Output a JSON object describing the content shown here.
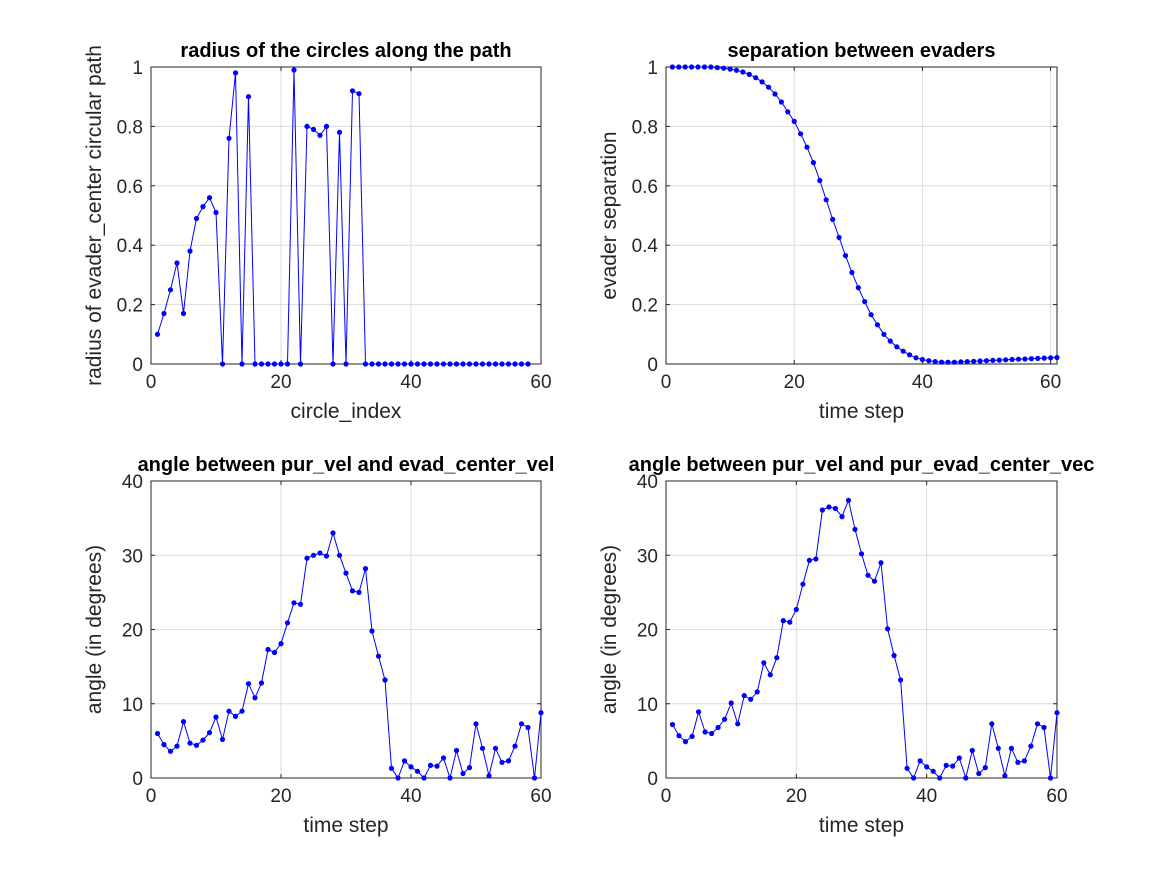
{
  "style": {
    "line_color": "#0000ff",
    "grid_color": "#dcdcdc",
    "axis_color": "#262626"
  },
  "chart_data": [
    {
      "type": "line",
      "title": "radius of the circles along the path",
      "xlabel": "circle_index",
      "ylabel": "radius of evader_center circular path",
      "xlim": [
        0,
        60
      ],
      "ylim": [
        0,
        1
      ],
      "xticks": [
        0,
        20,
        40,
        60
      ],
      "yticks": [
        0,
        0.2,
        0.4,
        0.6,
        0.8,
        1
      ],
      "ytick_labels": [
        "0",
        "0.2",
        "0.4",
        "0.6",
        "0.8",
        "1"
      ],
      "grid": true,
      "series": [
        {
          "x": [
            1,
            2,
            3,
            4,
            5,
            6,
            7,
            8,
            9,
            10,
            11,
            12,
            13,
            14,
            15,
            16,
            17,
            18,
            19,
            20,
            21,
            22,
            23,
            24,
            25,
            26,
            27,
            28,
            29,
            30,
            31,
            32,
            33,
            34,
            35,
            36,
            37,
            38,
            39,
            40,
            41,
            42,
            43,
            44,
            45,
            46,
            47,
            48,
            49,
            50,
            51,
            52,
            53,
            54,
            55,
            56,
            57,
            58
          ],
          "y": [
            0.1,
            0.17,
            0.25,
            0.34,
            0.17,
            0.38,
            0.49,
            0.53,
            0.56,
            0.51,
            0,
            0.76,
            0.98,
            0,
            0.9,
            0,
            0,
            0,
            0,
            0,
            0,
            0.99,
            0,
            0.8,
            0.79,
            0.77,
            0.8,
            0,
            0.78,
            0,
            0.92,
            0.91,
            0,
            0,
            0,
            0,
            0,
            0,
            0,
            0,
            0,
            0,
            0,
            0,
            0,
            0,
            0,
            0,
            0,
            0,
            0,
            0,
            0,
            0,
            0,
            0,
            0,
            0
          ]
        }
      ]
    },
    {
      "type": "line",
      "title": "separation between evaders",
      "xlabel": "time step",
      "ylabel": "evader separation",
      "xlim": [
        0,
        61
      ],
      "ylim": [
        0,
        1
      ],
      "xticks": [
        0,
        20,
        40,
        60
      ],
      "yticks": [
        0,
        0.2,
        0.4,
        0.6,
        0.8,
        1
      ],
      "ytick_labels": [
        "0",
        "0.2",
        "0.4",
        "0.6",
        "0.8",
        "1"
      ],
      "grid": true,
      "series": [
        {
          "x": [
            1,
            2,
            3,
            4,
            5,
            6,
            7,
            8,
            9,
            10,
            11,
            12,
            13,
            14,
            15,
            16,
            17,
            18,
            19,
            20,
            21,
            22,
            23,
            24,
            25,
            26,
            27,
            28,
            29,
            30,
            31,
            32,
            33,
            34,
            35,
            36,
            37,
            38,
            39,
            40,
            41,
            42,
            43,
            44,
            45,
            46,
            47,
            48,
            49,
            50,
            51,
            52,
            53,
            54,
            55,
            56,
            57,
            58,
            59,
            60,
            61
          ],
          "y": [
            1.0,
            1.0,
            1.0,
            1.0,
            1.0,
            1.0,
            1.0,
            0.998,
            0.996,
            0.993,
            0.989,
            0.983,
            0.975,
            0.964,
            0.95,
            0.932,
            0.909,
            0.882,
            0.849,
            0.817,
            0.775,
            0.73,
            0.678,
            0.618,
            0.553,
            0.487,
            0.426,
            0.365,
            0.308,
            0.257,
            0.21,
            0.166,
            0.132,
            0.1,
            0.077,
            0.058,
            0.043,
            0.031,
            0.021,
            0.015,
            0.011,
            0.008,
            0.006,
            0.006,
            0.006,
            0.007,
            0.008,
            0.009,
            0.01,
            0.011,
            0.012,
            0.013,
            0.014,
            0.015,
            0.016,
            0.017,
            0.018,
            0.019,
            0.02,
            0.021,
            0.022
          ]
        }
      ]
    },
    {
      "type": "line",
      "title": "angle between pur_vel and evad_center_vel",
      "xlabel": "time step",
      "ylabel": "angle (in degrees)",
      "xlim": [
        0,
        60
      ],
      "ylim": [
        0,
        40
      ],
      "xticks": [
        0,
        20,
        40,
        60
      ],
      "yticks": [
        0,
        10,
        20,
        30,
        40
      ],
      "ytick_labels": [
        "0",
        "10",
        "20",
        "30",
        "40"
      ],
      "grid": true,
      "series": [
        {
          "x": [
            1,
            2,
            3,
            4,
            5,
            6,
            7,
            8,
            9,
            10,
            11,
            12,
            13,
            14,
            15,
            16,
            17,
            18,
            19,
            20,
            21,
            22,
            23,
            24,
            25,
            26,
            27,
            28,
            29,
            30,
            31,
            32,
            33,
            34,
            35,
            36,
            37,
            38,
            39,
            40,
            41,
            42,
            43,
            44,
            45,
            46,
            47,
            48,
            49,
            50,
            51,
            52,
            53,
            54,
            55,
            56,
            57,
            58,
            59,
            60
          ],
          "y": [
            6.0,
            4.5,
            3.6,
            4.3,
            7.6,
            4.7,
            4.4,
            5.1,
            6.1,
            8.2,
            5.2,
            9.0,
            8.3,
            9.0,
            12.7,
            10.8,
            12.8,
            17.3,
            16.9,
            18.1,
            20.9,
            23.6,
            23.4,
            29.6,
            30.0,
            30.3,
            29.9,
            33.0,
            30.0,
            27.6,
            25.2,
            25.0,
            28.2,
            19.8,
            16.4,
            13.2,
            1.3,
            0,
            2.3,
            1.5,
            0.9,
            0,
            1.7,
            1.6,
            2.7,
            0,
            3.7,
            0.6,
            1.4,
            7.3,
            4.0,
            0.3,
            4.0,
            2.1,
            2.3,
            4.3,
            7.3,
            6.8,
            0,
            8.8
          ]
        }
      ]
    },
    {
      "type": "line",
      "title": "angle between pur_vel and pur_evad_center_vec",
      "xlabel": "time step",
      "ylabel": "angle (in degrees)",
      "xlim": [
        0,
        60
      ],
      "ylim": [
        0,
        40
      ],
      "xticks": [
        0,
        20,
        40,
        60
      ],
      "yticks": [
        0,
        10,
        20,
        30,
        40
      ],
      "ytick_labels": [
        "0",
        "10",
        "20",
        "30",
        "40"
      ],
      "grid": true,
      "series": [
        {
          "x": [
            1,
            2,
            3,
            4,
            5,
            6,
            7,
            8,
            9,
            10,
            11,
            12,
            13,
            14,
            15,
            16,
            17,
            18,
            19,
            20,
            21,
            22,
            23,
            24,
            25,
            26,
            27,
            28,
            29,
            30,
            31,
            32,
            33,
            34,
            35,
            36,
            37,
            38,
            39,
            40,
            41,
            42,
            43,
            44,
            45,
            46,
            47,
            48,
            49,
            50,
            51,
            52,
            53,
            54,
            55,
            56,
            57,
            58,
            59,
            60
          ],
          "y": [
            7.2,
            5.7,
            4.9,
            5.6,
            8.9,
            6.2,
            6.0,
            6.8,
            7.9,
            10.1,
            7.3,
            11.1,
            10.6,
            11.6,
            15.5,
            13.9,
            16.2,
            21.2,
            21.0,
            22.7,
            26.1,
            29.3,
            29.5,
            36.1,
            36.5,
            36.3,
            35.2,
            37.4,
            33.5,
            30.2,
            27.3,
            26.5,
            29.0,
            20.1,
            16.5,
            13.2,
            1.3,
            0,
            2.3,
            1.5,
            0.9,
            0,
            1.7,
            1.6,
            2.7,
            0,
            3.7,
            0.6,
            1.4,
            7.3,
            4.0,
            0.3,
            4.0,
            2.1,
            2.3,
            4.3,
            7.3,
            6.8,
            0,
            8.8
          ]
        }
      ]
    }
  ]
}
